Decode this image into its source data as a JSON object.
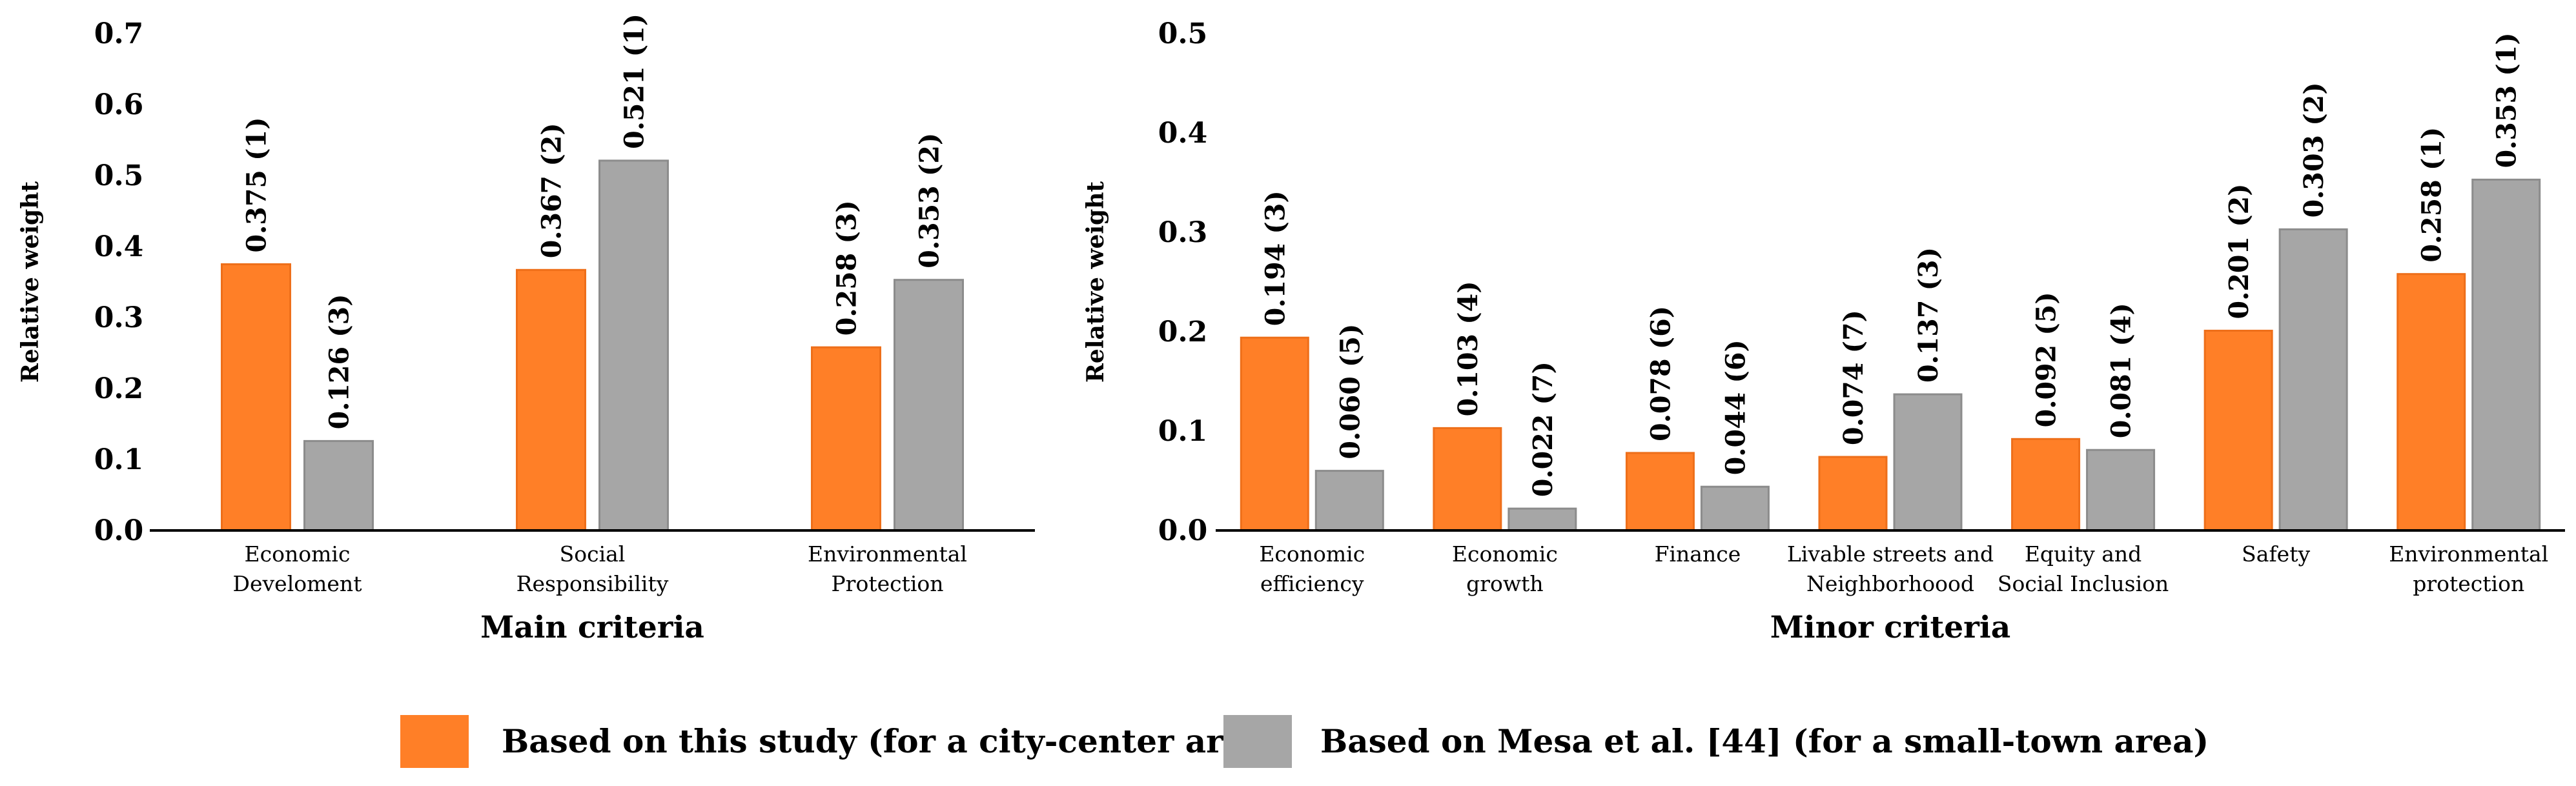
{
  "colors": {
    "this_study": "#FF7F27",
    "mesa": "#A6A6A6"
  },
  "legend": [
    {
      "name": "Based on this study (for a city-center area)",
      "color": "#FF7F27"
    },
    {
      "name": "Based on Mesa et al. [44] (for a small-town area)",
      "color": "#A6A6A6"
    }
  ],
  "chart_data": [
    {
      "type": "bar",
      "xlabel": "Main criteria",
      "ylabel": "Relative weight",
      "ylim": [
        0,
        0.7
      ],
      "yticks": [
        "0.0",
        "0.1",
        "0.2",
        "0.3",
        "0.4",
        "0.5",
        "0.6",
        "0.7"
      ],
      "categories": [
        [
          "Economic",
          "Develoment"
        ],
        [
          "Social",
          "Responsibility"
        ],
        [
          "Environmental",
          "Protection"
        ]
      ],
      "series": [
        {
          "name": "Based on this study (for a city-center area)",
          "values": [
            0.375,
            0.367,
            0.258
          ],
          "labels": [
            "0.375 (1)",
            "0.367 (2)",
            "0.258 (3)"
          ]
        },
        {
          "name": "Based on Mesa et al. [44] (for a small-town area)",
          "values": [
            0.126,
            0.521,
            0.353
          ],
          "labels": [
            "0.126 (3)",
            "0.521 (1)",
            "0.353 (2)"
          ]
        }
      ],
      "grid": false
    },
    {
      "type": "bar",
      "xlabel": "Minor criteria",
      "ylabel": "Relative weight",
      "ylim": [
        0,
        0.5
      ],
      "yticks": [
        "0.0",
        "0.1",
        "0.2",
        "0.3",
        "0.4",
        "0.5"
      ],
      "categories": [
        [
          "Economic",
          "efficiency"
        ],
        [
          "Economic",
          "growth"
        ],
        [
          "Finance"
        ],
        [
          "Livable streets and",
          "Neighborhoood"
        ],
        [
          "Equity and",
          "Social Inclusion"
        ],
        [
          "Safety"
        ],
        [
          "Environmental",
          "protection"
        ]
      ],
      "series": [
        {
          "name": "Based on this study (for a city-center area)",
          "values": [
            0.194,
            0.103,
            0.078,
            0.074,
            0.092,
            0.201,
            0.258
          ],
          "labels": [
            "0.194 (3)",
            "0.103 (4)",
            "0.078 (6)",
            "0.074 (7)",
            "0.092 (5)",
            "0.201 (2)",
            "0.258 (1)"
          ]
        },
        {
          "name": "Based on Mesa et al. [44] (for a small-town area)",
          "values": [
            0.06,
            0.022,
            0.044,
            0.137,
            0.081,
            0.303,
            0.353
          ],
          "labels": [
            "0.060 (5)",
            "0.022 (7)",
            "0.044 (6)",
            "0.137 (3)",
            "0.081 (4)",
            "0.303 (2)",
            "0.353 (1)"
          ]
        }
      ],
      "grid": false
    }
  ]
}
